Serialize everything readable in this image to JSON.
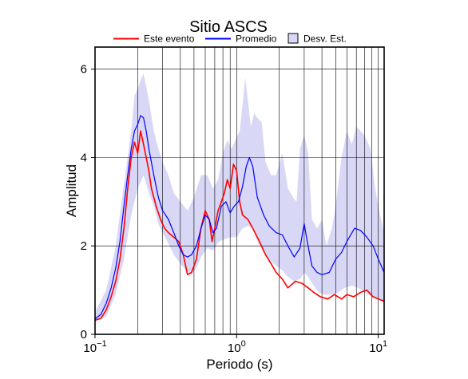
{
  "chart_data": {
    "type": "line",
    "title": "Sitio ASCS",
    "xlabel": "Periodo (s)",
    "ylabel": "Amplitud",
    "xscale": "log",
    "xlim": [
      0.1,
      11
    ],
    "ylim": [
      0,
      6.5
    ],
    "grid": true,
    "legend_position": "top",
    "x_ticks": [
      {
        "value": 0.1,
        "base": "10",
        "exp": "−1"
      },
      {
        "value": 1,
        "base": "10",
        "exp": "0"
      },
      {
        "value": 10,
        "base": "10",
        "exp": "1"
      }
    ],
    "y_ticks": [
      0,
      2,
      4,
      6
    ],
    "series": [
      {
        "name": "Este evento",
        "color": "#ff0000",
        "points": [
          [
            0.1,
            0.32
          ],
          [
            0.11,
            0.36
          ],
          [
            0.12,
            0.55
          ],
          [
            0.13,
            0.85
          ],
          [
            0.14,
            1.2
          ],
          [
            0.15,
            1.7
          ],
          [
            0.16,
            2.4
          ],
          [
            0.17,
            3.3
          ],
          [
            0.18,
            4.0
          ],
          [
            0.19,
            4.35
          ],
          [
            0.2,
            4.1
          ],
          [
            0.21,
            4.6
          ],
          [
            0.22,
            4.3
          ],
          [
            0.23,
            4.0
          ],
          [
            0.24,
            3.7
          ],
          [
            0.25,
            3.3
          ],
          [
            0.27,
            2.9
          ],
          [
            0.29,
            2.6
          ],
          [
            0.31,
            2.4
          ],
          [
            0.33,
            2.3
          ],
          [
            0.36,
            2.2
          ],
          [
            0.39,
            2.1
          ],
          [
            0.42,
            1.8
          ],
          [
            0.45,
            1.35
          ],
          [
            0.48,
            1.4
          ],
          [
            0.52,
            1.7
          ],
          [
            0.56,
            2.4
          ],
          [
            0.6,
            2.8
          ],
          [
            0.64,
            2.6
          ],
          [
            0.67,
            2.1
          ],
          [
            0.7,
            2.4
          ],
          [
            0.74,
            2.8
          ],
          [
            0.78,
            3.0
          ],
          [
            0.82,
            3.2
          ],
          [
            0.86,
            3.5
          ],
          [
            0.9,
            3.3
          ],
          [
            0.95,
            3.85
          ],
          [
            1.0,
            3.7
          ],
          [
            1.05,
            3.0
          ],
          [
            1.1,
            2.7
          ],
          [
            1.2,
            2.6
          ],
          [
            1.3,
            2.4
          ],
          [
            1.45,
            2.1
          ],
          [
            1.6,
            1.8
          ],
          [
            1.75,
            1.6
          ],
          [
            1.9,
            1.4
          ],
          [
            2.1,
            1.25
          ],
          [
            2.3,
            1.05
          ],
          [
            2.6,
            1.2
          ],
          [
            2.9,
            1.15
          ],
          [
            3.2,
            1.05
          ],
          [
            3.5,
            0.95
          ],
          [
            3.9,
            0.85
          ],
          [
            4.4,
            0.8
          ],
          [
            4.9,
            0.9
          ],
          [
            5.5,
            0.8
          ],
          [
            6.0,
            0.9
          ],
          [
            6.7,
            0.85
          ],
          [
            7.5,
            0.95
          ],
          [
            8.3,
            1.0
          ],
          [
            9.2,
            0.85
          ],
          [
            10.0,
            0.8
          ],
          [
            11.0,
            0.75
          ]
        ]
      },
      {
        "name": "Promedio",
        "color": "#0000ff",
        "points": [
          [
            0.1,
            0.35
          ],
          [
            0.11,
            0.45
          ],
          [
            0.12,
            0.7
          ],
          [
            0.13,
            1.05
          ],
          [
            0.14,
            1.5
          ],
          [
            0.15,
            2.1
          ],
          [
            0.16,
            2.9
          ],
          [
            0.17,
            3.6
          ],
          [
            0.18,
            4.2
          ],
          [
            0.19,
            4.6
          ],
          [
            0.2,
            4.75
          ],
          [
            0.21,
            4.95
          ],
          [
            0.22,
            4.9
          ],
          [
            0.23,
            4.6
          ],
          [
            0.24,
            4.2
          ],
          [
            0.26,
            3.6
          ],
          [
            0.28,
            3.1
          ],
          [
            0.3,
            2.8
          ],
          [
            0.33,
            2.6
          ],
          [
            0.36,
            2.3
          ],
          [
            0.39,
            2.0
          ],
          [
            0.42,
            1.8
          ],
          [
            0.45,
            1.75
          ],
          [
            0.48,
            1.8
          ],
          [
            0.52,
            2.0
          ],
          [
            0.56,
            2.4
          ],
          [
            0.6,
            2.7
          ],
          [
            0.64,
            2.6
          ],
          [
            0.68,
            2.3
          ],
          [
            0.72,
            2.4
          ],
          [
            0.78,
            2.9
          ],
          [
            0.84,
            3.0
          ],
          [
            0.9,
            2.75
          ],
          [
            0.96,
            2.9
          ],
          [
            1.03,
            3.0
          ],
          [
            1.1,
            3.35
          ],
          [
            1.17,
            3.8
          ],
          [
            1.23,
            4.0
          ],
          [
            1.3,
            3.8
          ],
          [
            1.4,
            3.1
          ],
          [
            1.55,
            2.7
          ],
          [
            1.7,
            2.45
          ],
          [
            1.9,
            2.3
          ],
          [
            2.1,
            2.25
          ],
          [
            2.3,
            2.0
          ],
          [
            2.55,
            1.75
          ],
          [
            2.8,
            1.95
          ],
          [
            3.0,
            2.5
          ],
          [
            3.15,
            2.1
          ],
          [
            3.4,
            1.55
          ],
          [
            3.7,
            1.4
          ],
          [
            4.0,
            1.35
          ],
          [
            4.5,
            1.4
          ],
          [
            5.0,
            1.7
          ],
          [
            5.5,
            1.85
          ],
          [
            6.0,
            2.1
          ],
          [
            6.8,
            2.4
          ],
          [
            7.5,
            2.35
          ],
          [
            8.3,
            2.2
          ],
          [
            9.2,
            2.0
          ],
          [
            10.0,
            1.7
          ],
          [
            11.0,
            1.4
          ]
        ]
      }
    ],
    "band": {
      "name": "Desv. Est.",
      "color": "#d8d8f6",
      "upper": [
        [
          0.1,
          0.5
        ],
        [
          0.12,
          1.0
        ],
        [
          0.14,
          2.0
        ],
        [
          0.16,
          3.4
        ],
        [
          0.18,
          4.6
        ],
        [
          0.19,
          5.4
        ],
        [
          0.2,
          5.55
        ],
        [
          0.21,
          5.75
        ],
        [
          0.22,
          5.9
        ],
        [
          0.23,
          5.6
        ],
        [
          0.24,
          5.3
        ],
        [
          0.26,
          4.6
        ],
        [
          0.28,
          4.2
        ],
        [
          0.3,
          3.9
        ],
        [
          0.33,
          3.6
        ],
        [
          0.36,
          3.2
        ],
        [
          0.4,
          3.0
        ],
        [
          0.45,
          2.8
        ],
        [
          0.5,
          3.1
        ],
        [
          0.56,
          3.6
        ],
        [
          0.62,
          3.6
        ],
        [
          0.68,
          3.3
        ],
        [
          0.74,
          3.5
        ],
        [
          0.8,
          4.1
        ],
        [
          0.86,
          4.4
        ],
        [
          0.92,
          4.2
        ],
        [
          1.0,
          4.45
        ],
        [
          1.05,
          4.6
        ],
        [
          1.1,
          5.2
        ],
        [
          1.15,
          5.8
        ],
        [
          1.2,
          5.3
        ],
        [
          1.26,
          4.7
        ],
        [
          1.33,
          5.0
        ],
        [
          1.4,
          4.9
        ],
        [
          1.5,
          4.8
        ],
        [
          1.6,
          3.9
        ],
        [
          1.75,
          3.6
        ],
        [
          1.9,
          3.6
        ],
        [
          2.1,
          4.1
        ],
        [
          2.3,
          3.3
        ],
        [
          2.5,
          3.1
        ],
        [
          2.65,
          3.0
        ],
        [
          2.8,
          4.2
        ],
        [
          3.0,
          4.5
        ],
        [
          3.2,
          4.1
        ],
        [
          3.4,
          2.6
        ],
        [
          3.7,
          2.4
        ],
        [
          4.0,
          2.6
        ],
        [
          4.3,
          2.0
        ],
        [
          4.7,
          2.4
        ],
        [
          5.0,
          2.9
        ],
        [
          5.5,
          4.0
        ],
        [
          6.0,
          4.6
        ],
        [
          6.5,
          4.3
        ],
        [
          7.0,
          4.7
        ],
        [
          7.5,
          4.6
        ],
        [
          8.0,
          4.5
        ],
        [
          8.8,
          4.2
        ],
        [
          9.5,
          3.3
        ],
        [
          10.3,
          2.7
        ],
        [
          11.0,
          2.3
        ]
      ],
      "lower": [
        [
          0.1,
          0.3
        ],
        [
          0.12,
          0.4
        ],
        [
          0.14,
          0.9
        ],
        [
          0.16,
          1.7
        ],
        [
          0.18,
          2.7
        ],
        [
          0.2,
          3.3
        ],
        [
          0.22,
          3.6
        ],
        [
          0.24,
          3.2
        ],
        [
          0.26,
          2.9
        ],
        [
          0.28,
          2.5
        ],
        [
          0.3,
          2.3
        ],
        [
          0.33,
          2.05
        ],
        [
          0.36,
          1.8
        ],
        [
          0.4,
          1.6
        ],
        [
          0.44,
          1.45
        ],
        [
          0.48,
          1.35
        ],
        [
          0.52,
          1.5
        ],
        [
          0.56,
          1.75
        ],
        [
          0.62,
          1.95
        ],
        [
          0.68,
          1.9
        ],
        [
          0.75,
          2.1
        ],
        [
          0.82,
          2.15
        ],
        [
          0.9,
          2.2
        ],
        [
          1.0,
          2.2
        ],
        [
          1.1,
          2.4
        ],
        [
          1.2,
          2.45
        ],
        [
          1.3,
          2.4
        ],
        [
          1.4,
          2.1
        ],
        [
          1.55,
          1.85
        ],
        [
          1.7,
          1.7
        ],
        [
          1.9,
          1.55
        ],
        [
          2.1,
          1.45
        ],
        [
          2.3,
          1.3
        ],
        [
          2.55,
          1.2
        ],
        [
          2.8,
          1.25
        ],
        [
          3.0,
          1.4
        ],
        [
          3.2,
          1.3
        ],
        [
          3.5,
          1.1
        ],
        [
          3.8,
          0.95
        ],
        [
          4.2,
          0.9
        ],
        [
          4.7,
          0.9
        ],
        [
          5.2,
          0.95
        ],
        [
          5.8,
          1.05
        ],
        [
          6.5,
          1.1
        ],
        [
          7.2,
          1.05
        ],
        [
          8.0,
          0.95
        ],
        [
          9.0,
          0.85
        ],
        [
          10.0,
          0.8
        ],
        [
          11.0,
          0.75
        ]
      ]
    }
  }
}
